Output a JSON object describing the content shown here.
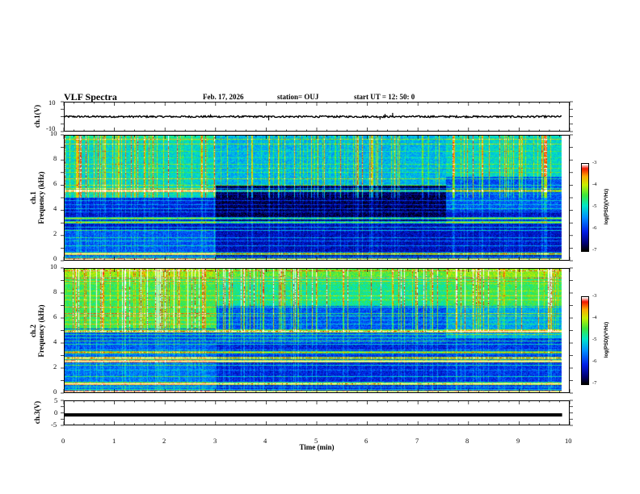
{
  "header": {
    "title": "VLF Spectra",
    "date": "Feb. 17, 2026",
    "station": "station= OUJ",
    "start": "start  UT  =    12: 50: 0"
  },
  "chart_data": [
    {
      "id": "ch1-waveform",
      "type": "line",
      "ylabel": "ch.1(V)",
      "ylim": [
        -10,
        10
      ],
      "yticks": [
        "10",
        "-10"
      ],
      "x_range_min": [
        0,
        10
      ],
      "baseline_value": 0,
      "noise_amplitude": 0.6,
      "spikes": [
        {
          "t": 4.05,
          "v": -2.5
        },
        {
          "t": 6.25,
          "v": -2.0
        },
        {
          "t": 6.35,
          "v": 1.8
        },
        {
          "t": 6.5,
          "v": 2.5
        },
        {
          "t": 9.05,
          "v": -1.2
        },
        {
          "t": 2.9,
          "v": 1.6
        }
      ]
    },
    {
      "id": "ch1-spectrogram",
      "type": "heatmap",
      "ylabel": "ch.1\nFrequency (kHz)",
      "ylim": [
        0,
        10
      ],
      "yticks": [
        "0",
        "2",
        "4",
        "6",
        "8",
        "10"
      ],
      "x_range_min": [
        0,
        9.85
      ],
      "colorbar": {
        "range": [
          -7,
          -3
        ],
        "ticks": [
          "-3",
          "-4",
          "-5",
          "-6",
          "-7"
        ],
        "label": "log(PSD)(V²/Hz)"
      }
    },
    {
      "id": "ch2-spectrogram",
      "type": "heatmap",
      "ylabel": "ch.2\nFrequency (kHz)",
      "ylim": [
        0,
        10
      ],
      "yticks": [
        "0",
        "2",
        "4",
        "6",
        "8",
        "10"
      ],
      "x_range_min": [
        0,
        9.85
      ],
      "colorbar": {
        "range": [
          -7,
          -3
        ],
        "ticks": [
          "-3",
          "-4",
          "-5",
          "-6",
          "-7"
        ],
        "label": "log(PSD)(V²/Hz)"
      }
    },
    {
      "id": "ch3-waveform",
      "type": "line",
      "ylabel": "ch.3(V)",
      "ylim": [
        -5,
        5
      ],
      "yticks": [
        "5",
        "0",
        "-5"
      ],
      "x_range_min": [
        0,
        9.85
      ],
      "baseline_value": -0.8
    }
  ],
  "xaxis": {
    "label": "Time  (min)",
    "range": [
      0,
      10
    ],
    "ticks": [
      "0",
      "1",
      "2",
      "3",
      "4",
      "5",
      "6",
      "7",
      "8",
      "9",
      "10"
    ]
  },
  "colors": {
    "axis": "#000000",
    "trace": "#000000"
  }
}
